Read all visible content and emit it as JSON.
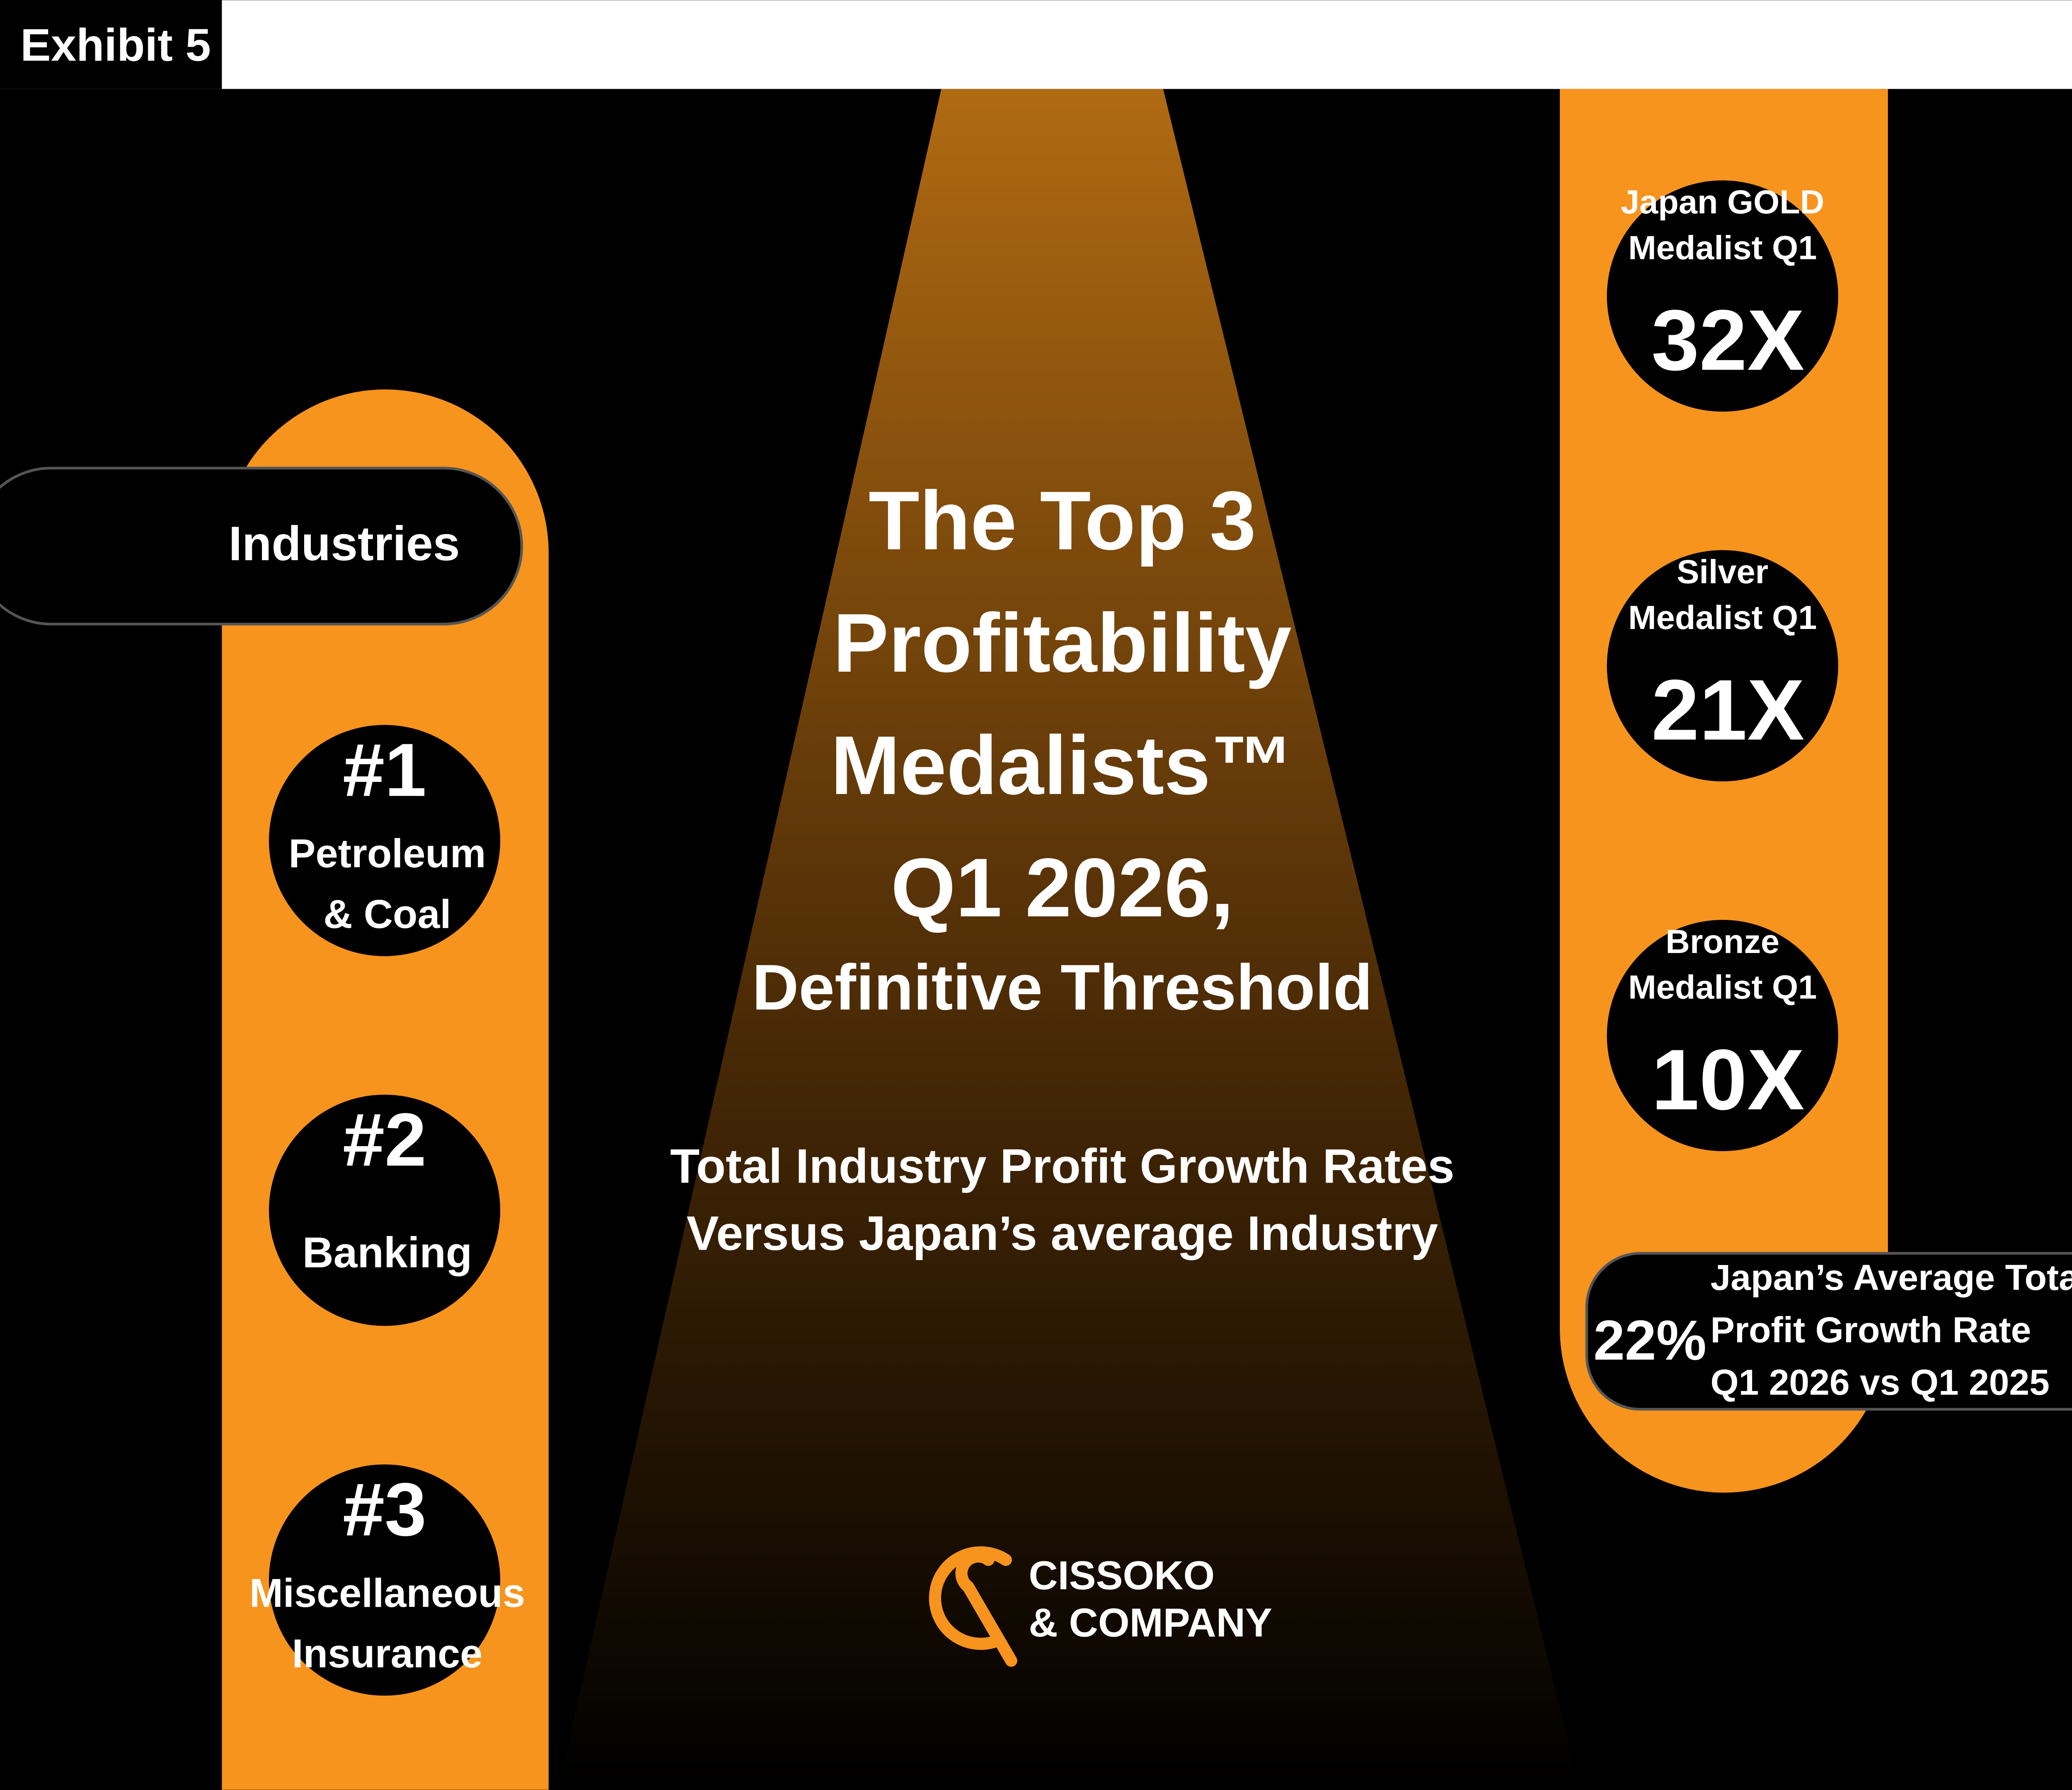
{
  "header": {
    "label": "Exhibit 5"
  },
  "left_panel": {
    "title": "Industries",
    "items": [
      {
        "rank": "#1",
        "lines": [
          "Petroleum",
          "& Coal"
        ]
      },
      {
        "rank": "#2",
        "lines": [
          "Banking"
        ]
      },
      {
        "rank": "#3",
        "lines": [
          "Miscellaneous",
          "Insurance"
        ]
      }
    ]
  },
  "center": {
    "title_lines": [
      "The Top 3",
      "Profitability",
      "Medalists™",
      "Q1 2026,"
    ],
    "subtitle": "Definitive Threshold",
    "description_lines": [
      "Total Industry Profit Growth Rates",
      "Versus Japan’s average Industry"
    ],
    "logo_lines": [
      "CISSOKO",
      "& COMPANY"
    ]
  },
  "right_panel": {
    "medals": [
      {
        "label_lines": [
          "Japan GOLD",
          "Medalist Q1"
        ],
        "value": "32X"
      },
      {
        "label_lines": [
          "Silver",
          "Medalist Q1"
        ],
        "value": "21X"
      },
      {
        "label_lines": [
          "Bronze",
          "Medalist Q1"
        ],
        "value": "10X"
      }
    ],
    "average": {
      "value": "22%",
      "lines": [
        "Japan’s Average Total",
        "Profit Growth Rate",
        "Q1 2026 vs Q1 2025"
      ]
    }
  }
}
